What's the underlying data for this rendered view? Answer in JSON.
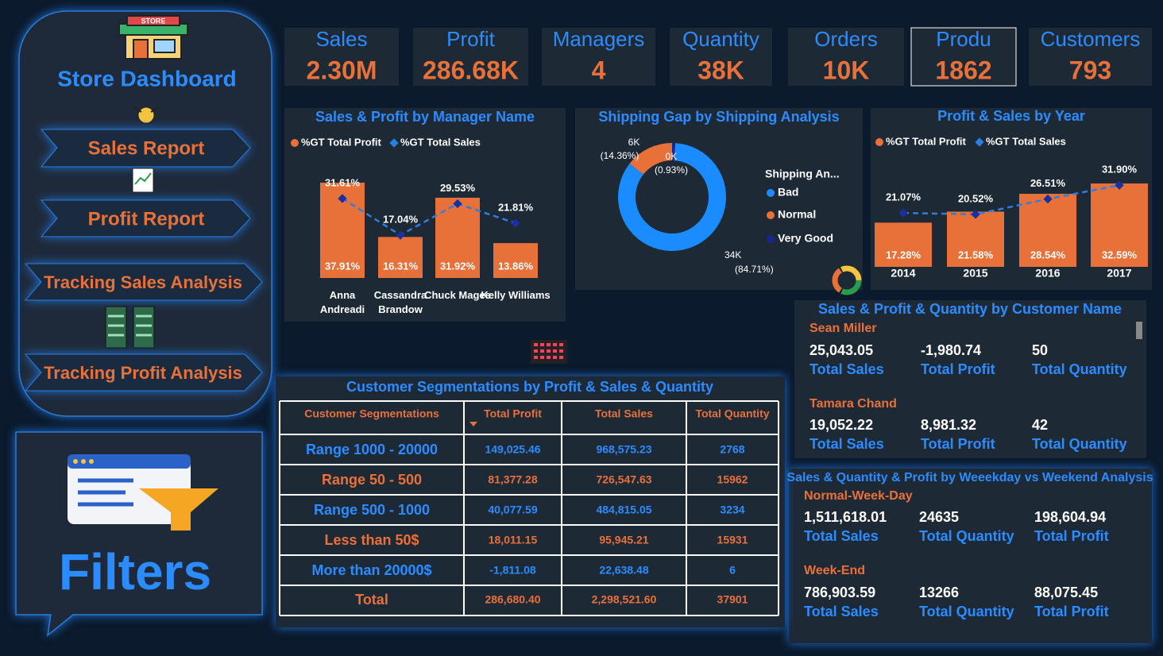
{
  "sidebar": {
    "title": "Store Dashboard",
    "buttons": [
      "Sales Report",
      "Profit Report",
      "Tracking Sales Analysis",
      "Tracking Profit Analysis"
    ],
    "filters": "Filters"
  },
  "kpis": [
    {
      "label": "Sales",
      "value": "2.30M"
    },
    {
      "label": "Profit",
      "value": "286.68K"
    },
    {
      "label": "Managers",
      "value": "4"
    },
    {
      "label": "Quantity",
      "value": "38K"
    },
    {
      "label": "Orders",
      "value": "10K"
    },
    {
      "label": "Produ",
      "value": "1862"
    },
    {
      "label": "Customers",
      "value": "793"
    }
  ],
  "chart_data": [
    {
      "type": "combo",
      "title": "Sales & Profit by Manager Name",
      "categories": [
        "Anna Andreadi",
        "Cassandra Brandow",
        "Chuck Magee",
        "Kelly Williams"
      ],
      "series": [
        {
          "name": "%GT Total Profit",
          "type": "bar",
          "color": "#e8713a",
          "values": [
            37.91,
            16.31,
            31.92,
            13.86
          ],
          "value_labels": [
            "37.91%",
            "16.31%",
            "31.92%",
            "13.86%"
          ]
        },
        {
          "name": "%GT Total Sales",
          "type": "line",
          "color": "#2b7fe0",
          "values": [
            31.61,
            17.04,
            29.53,
            21.81
          ],
          "value_labels": [
            "31.61%",
            "17.04%",
            "29.53%",
            "21.81%"
          ]
        }
      ]
    },
    {
      "type": "donut",
      "title": "Shipping Gap by Shipping Analysis",
      "legend_title": "Shipping An...",
      "series": [
        {
          "name": "Bad",
          "color": "#1a8cff"
        },
        {
          "name": "Normal",
          "color": "#e8713a"
        },
        {
          "name": "Very Good",
          "color": "#15278c"
        }
      ],
      "values": [
        84.71,
        14.36,
        0.93
      ],
      "count_labels": [
        "34K",
        "6K",
        "0K"
      ],
      "value_labels": [
        "(84.71%)",
        "(14.36%)",
        "(0.93%)"
      ]
    },
    {
      "type": "combo",
      "title": "Profit & Sales by Year",
      "categories": [
        "2014",
        "2015",
        "2016",
        "2017"
      ],
      "series": [
        {
          "name": "%GT Total Profit",
          "type": "bar",
          "color": "#e8713a",
          "values": [
            17.28,
            21.58,
            28.54,
            32.59
          ],
          "value_labels": [
            "17.28%",
            "21.58%",
            "28.54%",
            "32.59%"
          ]
        },
        {
          "name": "%GT Total Sales",
          "type": "line",
          "color": "#2b7fe0",
          "values": [
            21.07,
            20.52,
            26.51,
            31.9
          ],
          "value_labels": [
            "21.07%",
            "20.52%",
            "26.51%",
            "31.90%"
          ]
        }
      ]
    }
  ],
  "table": {
    "title": "Customer Segmentations by Profit & Sales & Quantity",
    "headers": [
      "Customer Segmentations",
      "Total Profit",
      "Total Sales",
      "Total Quantity"
    ],
    "rows": [
      [
        "Range 1000 - 20000",
        "149,025.46",
        "968,575.23",
        "2768"
      ],
      [
        "Range 50 - 500",
        "81,377.28",
        "726,547.63",
        "15962"
      ],
      [
        "Range 500 - 1000",
        "40,077.59",
        "484,815.05",
        "3234"
      ],
      [
        "Less than 50$",
        "18,011.15",
        "95,945.21",
        "15931"
      ],
      [
        "More than 20000$",
        "-1,811.08",
        "22,638.48",
        "6"
      ]
    ],
    "total": [
      "Total",
      "286,680.40",
      "2,298,521.60",
      "37901"
    ]
  },
  "customers": {
    "title": "Sales & Profit & Quantity by Customer Name",
    "cards": [
      {
        "name": "Sean Miller",
        "values": [
          "25,043.05",
          "-1,980.74",
          "50"
        ],
        "labels": [
          "Total Sales",
          "Total Profit",
          "Total Quantity"
        ]
      },
      {
        "name": "Tamara Chand",
        "values": [
          "19,052.22",
          "8,981.32",
          "42"
        ],
        "labels": [
          "Total Sales",
          "Total Profit",
          "Total Quantity"
        ]
      }
    ]
  },
  "weekday": {
    "title": "Sales & Quantity & Profit by Weeekday vs Weekend Analysis",
    "cards": [
      {
        "name": "Normal-Week-Day",
        "values": [
          "1,511,618.01",
          "24635",
          "198,604.94"
        ],
        "labels": [
          "Total Sales",
          "Total Quantity",
          "Total Profit"
        ]
      },
      {
        "name": "Week-End",
        "values": [
          "786,903.59",
          "13266",
          "88,075.45"
        ],
        "labels": [
          "Total Sales",
          "Total Quantity",
          "Total Profit"
        ]
      }
    ]
  }
}
